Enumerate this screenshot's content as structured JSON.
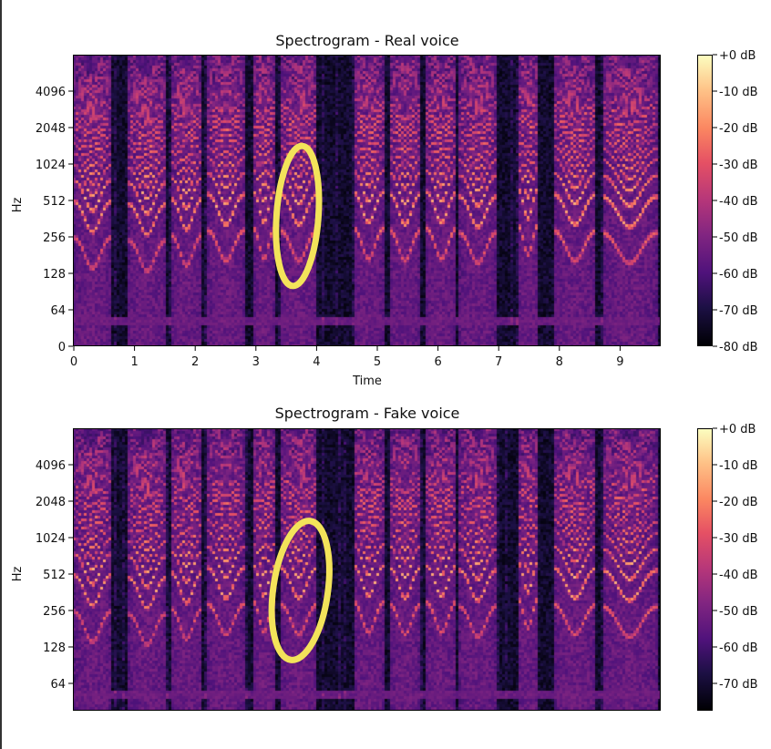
{
  "chart_data": [
    {
      "type": "heatmap",
      "title": "Spectrogram - Real voice",
      "xlabel": "Time",
      "ylabel": "Hz",
      "xlim": [
        0,
        9.7
      ],
      "ylim": [
        0,
        8192
      ],
      "yscale": "symlog",
      "xticks": [
        "0",
        "1",
        "2",
        "3",
        "4",
        "5",
        "6",
        "7",
        "8",
        "9"
      ],
      "yticks": [
        "0",
        "64",
        "128",
        "256",
        "512",
        "1024",
        "2048",
        "4096"
      ],
      "colorbar": {
        "ticks": [
          "+0 dB",
          "-10 dB",
          "-20 dB",
          "-30 dB",
          "-40 dB",
          "-50 dB",
          "-60 dB",
          "-70 dB",
          "-80 dB"
        ],
        "range_db": [
          -80,
          0
        ],
        "colormap": "magma"
      },
      "annotation": {
        "shape": "ellipse",
        "color": "#f3e35a",
        "time_range": [
          3.3,
          4.1
        ],
        "freq_range": [
          120,
          1500
        ]
      }
    },
    {
      "type": "heatmap",
      "title": "Spectrogram - Fake voice",
      "xlabel": "",
      "ylabel": "Hz",
      "xlim": [
        0,
        9.7
      ],
      "ylim": [
        30,
        8192
      ],
      "yscale": "symlog",
      "xticks": [],
      "yticks": [
        "64",
        "128",
        "256",
        "512",
        "1024",
        "2048",
        "4096"
      ],
      "colorbar": {
        "ticks": [
          "+0 dB",
          "-10 dB",
          "-20 dB",
          "-30 dB",
          "-40 dB",
          "-50 dB",
          "-60 dB",
          "-70 dB"
        ],
        "range_db": [
          -77,
          0
        ],
        "colormap": "magma"
      },
      "annotation": {
        "shape": "ellipse",
        "color": "#f3e35a",
        "time_range": [
          3.2,
          4.3
        ],
        "freq_range": [
          100,
          1400
        ]
      }
    }
  ],
  "voiced_segments_s": [
    [
      0,
      0.6,
      200
    ],
    [
      0.9,
      1.5,
      190
    ],
    [
      1.6,
      2.1,
      210
    ],
    [
      2.2,
      2.8,
      230
    ],
    [
      2.95,
      3.3,
      240
    ],
    [
      3.4,
      4.0,
      230
    ],
    [
      4.6,
      5.1,
      240
    ],
    [
      5.2,
      5.7,
      230
    ],
    [
      5.8,
      6.3,
      240
    ],
    [
      6.35,
      6.95,
      220
    ],
    [
      7.3,
      7.65,
      260
    ],
    [
      7.9,
      8.6,
      230
    ],
    [
      8.7,
      9.6,
      220
    ]
  ]
}
